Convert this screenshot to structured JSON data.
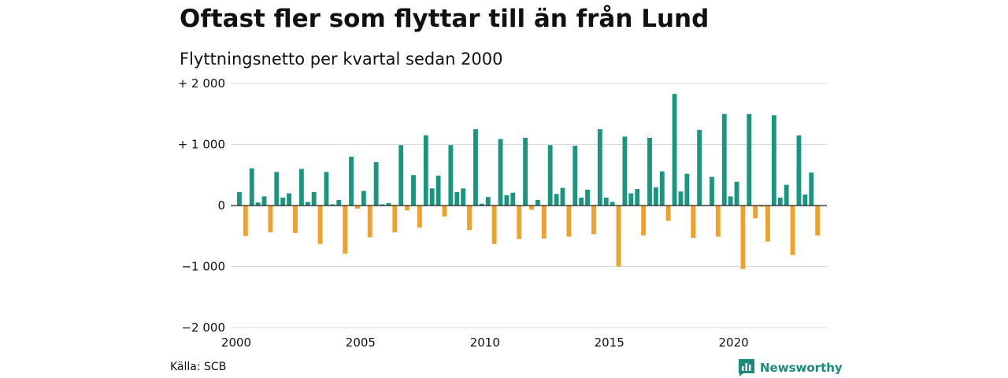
{
  "header": {
    "title": "Oftast fler som flyttar till än från Lund",
    "subtitle": "Flyttningsnetto per kvartal sedan 2000"
  },
  "footer": {
    "source": "Källa: SCB",
    "brand": "Newsworthy"
  },
  "colors": {
    "positive": "#1a9580",
    "negative": "#f0a12a",
    "grid": "#d9d9d9",
    "brand": "#1a8a7a"
  },
  "chart_data": {
    "type": "bar",
    "title": "Oftast fler som flyttar till än från Lund",
    "subtitle": "Flyttningsnetto per kvartal sedan 2000",
    "ylim": [
      -2000,
      2000
    ],
    "yticks": [
      2000,
      1000,
      0,
      -1000,
      -2000
    ],
    "ytick_labels": [
      "+ 2 000",
      "+ 1 000",
      "0",
      "−1 000",
      "−2 000"
    ],
    "xlim": [
      2000,
      2023.75
    ],
    "xticks": [
      2000,
      2005,
      2010,
      2015,
      2020
    ],
    "xtick_labels": [
      "2000",
      "2005",
      "2010",
      "2015",
      "2020"
    ],
    "grid": true,
    "start_year": 2000,
    "values": [
      220,
      -500,
      610,
      50,
      150,
      -440,
      550,
      130,
      200,
      -450,
      600,
      60,
      220,
      -630,
      550,
      20,
      90,
      -790,
      800,
      -50,
      240,
      -520,
      710,
      20,
      40,
      -440,
      990,
      -80,
      500,
      -360,
      1150,
      280,
      490,
      -180,
      990,
      220,
      280,
      -400,
      1250,
      30,
      140,
      -630,
      1090,
      170,
      210,
      -550,
      1110,
      -70,
      90,
      -540,
      990,
      190,
      290,
      -510,
      980,
      130,
      260,
      -470,
      1250,
      130,
      60,
      -1000,
      1130,
      200,
      270,
      -490,
      1110,
      300,
      560,
      -250,
      1830,
      230,
      520,
      -530,
      1240,
      10,
      470,
      -510,
      1500,
      150,
      390,
      -1040,
      1500,
      -210,
      -20,
      -590,
      1480,
      130,
      340,
      -810,
      1150,
      180,
      540,
      -490
    ]
  }
}
